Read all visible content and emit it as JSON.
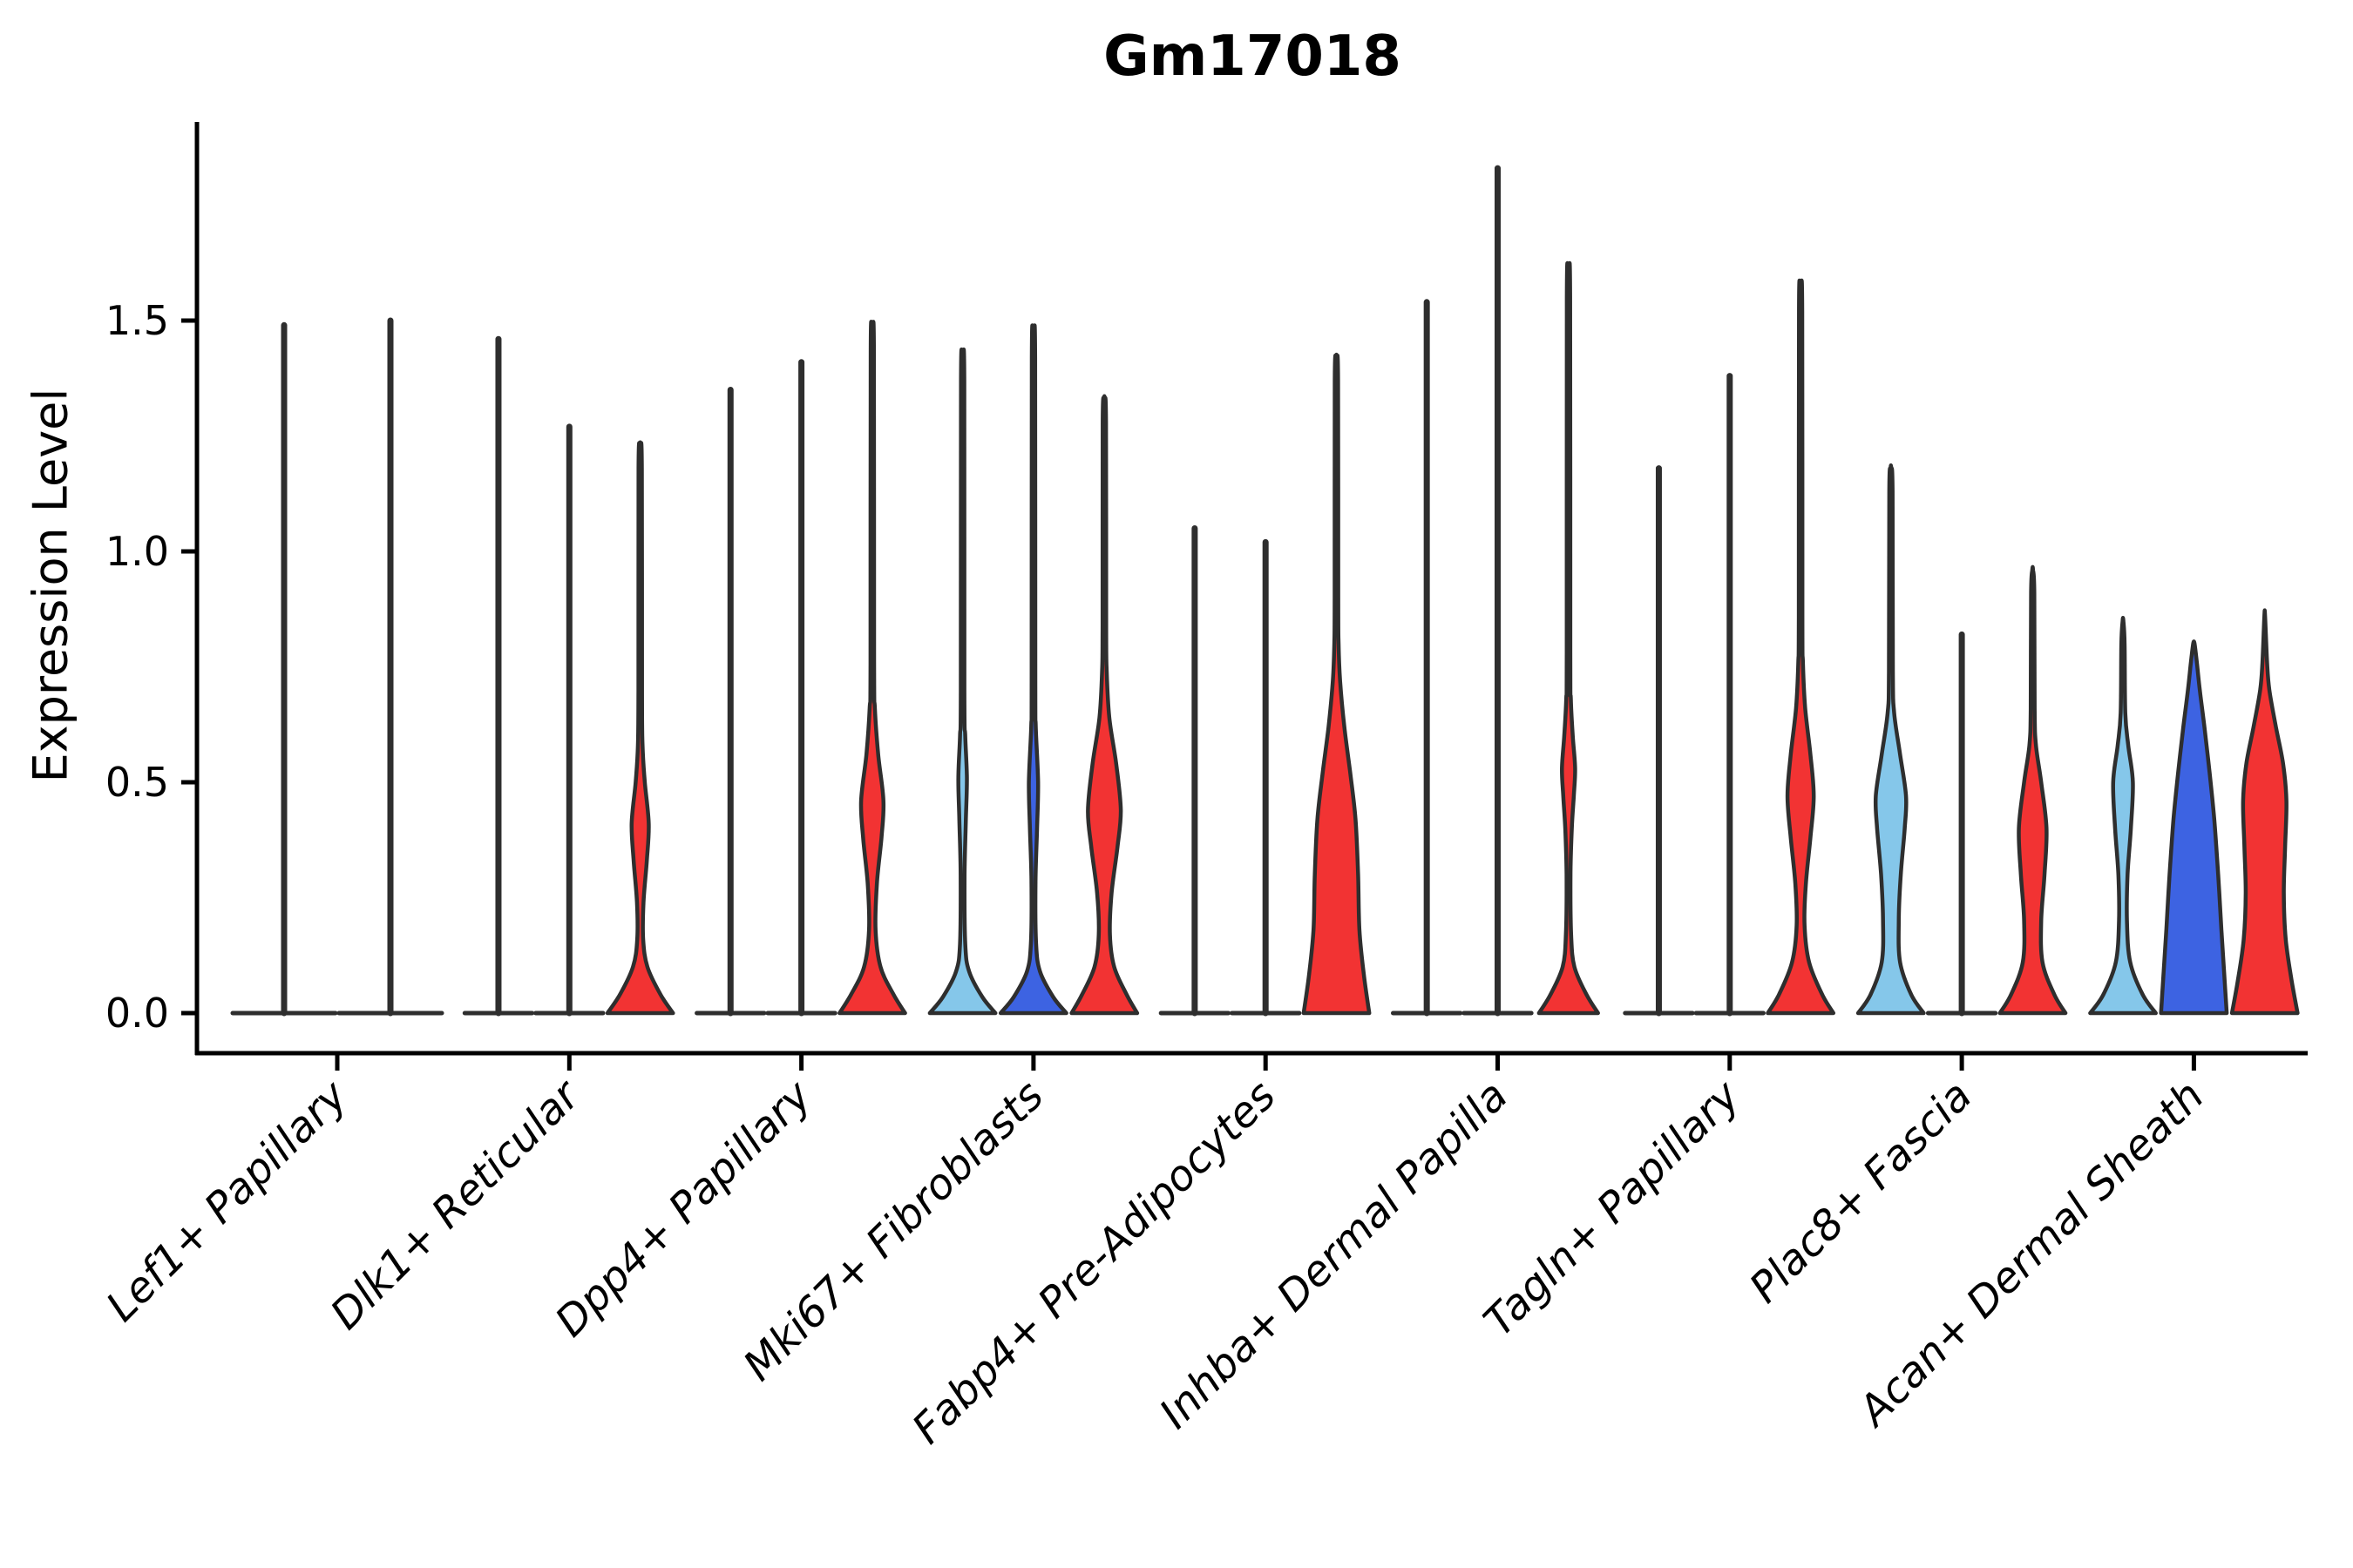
{
  "title": "Gm17018",
  "ylabel": "Expression Level",
  "colors": {
    "light_blue": "#85C7EA",
    "dark_blue": "#3D63E2",
    "red": "#F23333",
    "outline": "#2E2E2E",
    "axis": "#000000"
  },
  "chart_data": {
    "type": "violin",
    "title": "Gm17018",
    "xlabel": "",
    "ylabel": "Expression Level",
    "ylim": [
      0,
      1.93
    ],
    "grid": false,
    "legend": "none",
    "ytick_values": [
      0,
      0.5,
      1.0,
      1.5
    ],
    "ytick_labels": [
      "0.0",
      "0.5",
      "1.0",
      "1.5"
    ],
    "categories": [
      "Lef1+ Papillary",
      "Dlk1+ Reticular",
      "Dpp4+ Papillary",
      "Mki67+ Fibroblasts",
      "Fabp4+ Pre-Adipocytes",
      "Inhba+ Dermal Papilla",
      "Tagln+ Papillary",
      "Plac8+ Fascia",
      "Acan+ Dermal Sheath"
    ],
    "split_levels": [
      "light_blue",
      "dark_blue",
      "red"
    ],
    "groups": [
      {
        "category": "Lef1+ Papillary",
        "violins": [
          {
            "split": "light_blue",
            "max": 1.49,
            "profile": null
          },
          {
            "split": "dark_blue",
            "max": 1.5,
            "profile": null
          }
        ]
      },
      {
        "category": "Dlk1+ Reticular",
        "violins": [
          {
            "split": "light_blue",
            "max": 1.46,
            "profile": null
          },
          {
            "split": "dark_blue",
            "max": 1.27,
            "profile": null
          },
          {
            "split": "red",
            "max": 1.23,
            "profile": [
              [
                0,
                1
              ],
              [
                0.04,
                0.62
              ],
              [
                0.1,
                0.22
              ],
              [
                0.16,
                0.09
              ],
              [
                0.24,
                0.1
              ],
              [
                0.33,
                0.2
              ],
              [
                0.41,
                0.26
              ],
              [
                0.5,
                0.14
              ],
              [
                0.58,
                0.07
              ],
              [
                0.7,
                0.055
              ],
              [
                1.18,
                0.05
              ],
              [
                1.23,
                0.01
              ]
            ]
          }
        ]
      },
      {
        "category": "Dpp4+ Papillary",
        "violins": [
          {
            "split": "light_blue",
            "max": 1.35,
            "profile": null
          },
          {
            "split": "dark_blue",
            "max": 1.41,
            "profile": null
          },
          {
            "split": "red",
            "max": 1.48,
            "profile": [
              [
                0,
                1
              ],
              [
                0.04,
                0.65
              ],
              [
                0.1,
                0.25
              ],
              [
                0.18,
                0.1
              ],
              [
                0.28,
                0.14
              ],
              [
                0.38,
                0.28
              ],
              [
                0.46,
                0.34
              ],
              [
                0.56,
                0.18
              ],
              [
                0.66,
                0.08
              ],
              [
                0.76,
                0.055
              ],
              [
                1.43,
                0.05
              ],
              [
                1.48,
                0.01
              ]
            ]
          }
        ]
      },
      {
        "category": "Mki67+ Fibroblasts",
        "violins": [
          {
            "split": "light_blue",
            "max": 1.42,
            "profile": [
              [
                0,
                1
              ],
              [
                0.035,
                0.6
              ],
              [
                0.09,
                0.2
              ],
              [
                0.15,
                0.08
              ],
              [
                0.3,
                0.06
              ],
              [
                0.42,
                0.1
              ],
              [
                0.51,
                0.13
              ],
              [
                0.6,
                0.08
              ],
              [
                0.7,
                0.055
              ],
              [
                1.37,
                0.05
              ],
              [
                1.42,
                0.01
              ]
            ]
          },
          {
            "split": "dark_blue",
            "max": 1.47,
            "profile": [
              [
                0,
                1
              ],
              [
                0.035,
                0.6
              ],
              [
                0.09,
                0.2
              ],
              [
                0.15,
                0.08
              ],
              [
                0.28,
                0.06
              ],
              [
                0.4,
                0.11
              ],
              [
                0.5,
                0.14
              ],
              [
                0.62,
                0.07
              ],
              [
                0.72,
                0.055
              ],
              [
                1.42,
                0.05
              ],
              [
                1.47,
                0.01
              ]
            ]
          },
          {
            "split": "red",
            "max": 1.33,
            "profile": [
              [
                0,
                1
              ],
              [
                0.04,
                0.68
              ],
              [
                0.1,
                0.3
              ],
              [
                0.17,
                0.17
              ],
              [
                0.26,
                0.22
              ],
              [
                0.36,
                0.4
              ],
              [
                0.44,
                0.5
              ],
              [
                0.54,
                0.36
              ],
              [
                0.64,
                0.15
              ],
              [
                0.74,
                0.07
              ],
              [
                0.84,
                0.055
              ],
              [
                1.28,
                0.05
              ],
              [
                1.33,
                0.01
              ]
            ]
          }
        ]
      },
      {
        "category": "Fabp4+ Pre-Adipocytes",
        "violins": [
          {
            "split": "light_blue",
            "max": 1.05,
            "profile": null
          },
          {
            "split": "dark_blue",
            "max": 1.02,
            "profile": null
          },
          {
            "split": "red",
            "max": 1.42,
            "profile": [
              [
                0,
                1
              ],
              [
                0.08,
                0.84
              ],
              [
                0.18,
                0.7
              ],
              [
                0.3,
                0.66
              ],
              [
                0.42,
                0.58
              ],
              [
                0.52,
                0.42
              ],
              [
                0.62,
                0.24
              ],
              [
                0.72,
                0.11
              ],
              [
                0.8,
                0.065
              ],
              [
                0.9,
                0.055
              ],
              [
                1.37,
                0.05
              ],
              [
                1.42,
                0.01
              ]
            ]
          }
        ]
      },
      {
        "category": "Inhba+ Dermal Papilla",
        "violins": [
          {
            "split": "light_blue",
            "max": 1.54,
            "profile": null
          },
          {
            "split": "dark_blue",
            "max": 1.83,
            "profile": null
          },
          {
            "split": "red",
            "max": 1.6,
            "profile": [
              [
                0,
                0.9
              ],
              [
                0.04,
                0.55
              ],
              [
                0.1,
                0.18
              ],
              [
                0.17,
                0.08
              ],
              [
                0.3,
                0.06
              ],
              [
                0.4,
                0.1
              ],
              [
                0.47,
                0.16
              ],
              [
                0.53,
                0.2
              ],
              [
                0.6,
                0.13
              ],
              [
                0.68,
                0.07
              ],
              [
                0.78,
                0.055
              ],
              [
                1.55,
                0.05
              ],
              [
                1.6,
                0.01
              ]
            ]
          }
        ]
      },
      {
        "category": "Tagln+ Papillary",
        "violins": [
          {
            "split": "light_blue",
            "max": 1.18,
            "profile": null
          },
          {
            "split": "dark_blue",
            "max": 1.38,
            "profile": null
          },
          {
            "split": "red",
            "max": 1.57,
            "profile": [
              [
                0,
                1
              ],
              [
                0.04,
                0.66
              ],
              [
                0.11,
                0.26
              ],
              [
                0.19,
                0.12
              ],
              [
                0.28,
                0.16
              ],
              [
                0.38,
                0.3
              ],
              [
                0.47,
                0.4
              ],
              [
                0.56,
                0.3
              ],
              [
                0.66,
                0.14
              ],
              [
                0.76,
                0.07
              ],
              [
                0.86,
                0.055
              ],
              [
                1.52,
                0.05
              ],
              [
                1.57,
                0.01
              ]
            ]
          }
        ]
      },
      {
        "category": "Plac8+ Fascia",
        "violins": [
          {
            "split": "light_blue",
            "max": 1.18,
            "profile": [
              [
                0,
                1
              ],
              [
                0.04,
                0.62
              ],
              [
                0.11,
                0.28
              ],
              [
                0.2,
                0.24
              ],
              [
                0.3,
                0.3
              ],
              [
                0.4,
                0.42
              ],
              [
                0.47,
                0.46
              ],
              [
                0.56,
                0.28
              ],
              [
                0.65,
                0.1
              ],
              [
                0.74,
                0.06
              ],
              [
                1.13,
                0.05
              ],
              [
                1.18,
                0.01
              ]
            ]
          },
          {
            "split": "dark_blue",
            "max": 0.82,
            "profile": null
          },
          {
            "split": "red",
            "max": 0.96,
            "profile": [
              [
                0,
                1
              ],
              [
                0.04,
                0.66
              ],
              [
                0.11,
                0.3
              ],
              [
                0.2,
                0.26
              ],
              [
                0.3,
                0.36
              ],
              [
                0.4,
                0.42
              ],
              [
                0.5,
                0.26
              ],
              [
                0.58,
                0.1
              ],
              [
                0.66,
                0.06
              ],
              [
                0.91,
                0.05
              ],
              [
                0.96,
                0.01
              ]
            ]
          }
        ]
      },
      {
        "category": "Acan+ Dermal Sheath",
        "violins": [
          {
            "split": "light_blue",
            "max": 0.85,
            "profile": [
              [
                0,
                1
              ],
              [
                0.04,
                0.6
              ],
              [
                0.11,
                0.22
              ],
              [
                0.2,
                0.12
              ],
              [
                0.3,
                0.14
              ],
              [
                0.4,
                0.24
              ],
              [
                0.5,
                0.3
              ],
              [
                0.58,
                0.16
              ],
              [
                0.65,
                0.07
              ],
              [
                0.8,
                0.05
              ],
              [
                0.85,
                0.01
              ]
            ]
          },
          {
            "split": "dark_blue",
            "max": 0.8,
            "profile": [
              [
                0,
                1
              ],
              [
                0.08,
                0.93
              ],
              [
                0.18,
                0.84
              ],
              [
                0.3,
                0.74
              ],
              [
                0.42,
                0.62
              ],
              [
                0.52,
                0.48
              ],
              [
                0.62,
                0.32
              ],
              [
                0.7,
                0.18
              ],
              [
                0.76,
                0.09
              ],
              [
                0.8,
                0.02
              ]
            ]
          },
          {
            "split": "red",
            "max": 0.86,
            "profile": [
              [
                0,
                1
              ],
              [
                0.07,
                0.82
              ],
              [
                0.16,
                0.64
              ],
              [
                0.26,
                0.58
              ],
              [
                0.36,
                0.62
              ],
              [
                0.46,
                0.66
              ],
              [
                0.54,
                0.56
              ],
              [
                0.62,
                0.34
              ],
              [
                0.7,
                0.14
              ],
              [
                0.76,
                0.07
              ],
              [
                0.86,
                0.01
              ]
            ]
          }
        ]
      }
    ]
  }
}
